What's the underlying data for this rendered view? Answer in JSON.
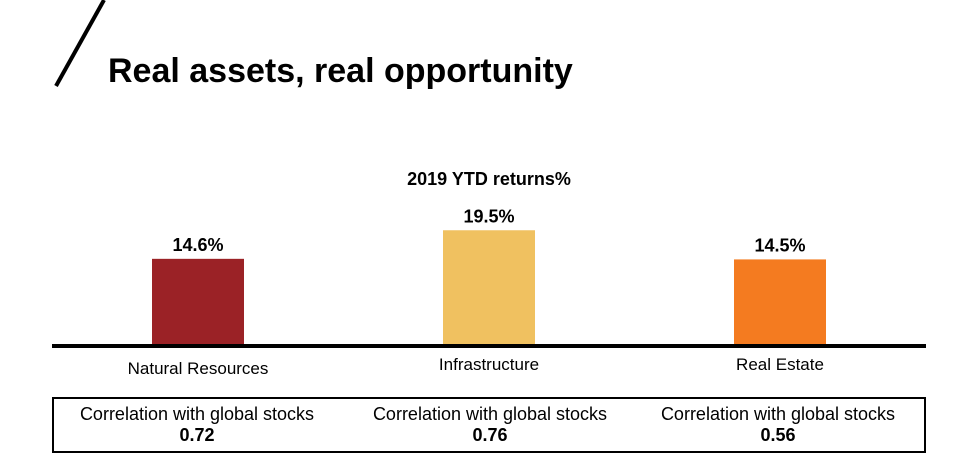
{
  "slide": {
    "title": "Real assets, real opportunity"
  },
  "chart_data": {
    "type": "bar",
    "title": "2019 YTD returns%",
    "categories": [
      "Natural Resources",
      "Infrastructure",
      "Real Estate"
    ],
    "values": [
      14.6,
      19.5,
      14.5
    ],
    "data_labels": [
      "14.6%",
      "19.5%",
      "14.5%"
    ],
    "colors": [
      "#9b2226",
      "#f0c160",
      "#f47b20"
    ],
    "xlabel": "",
    "ylabel": "",
    "ylim": [
      0,
      24
    ],
    "grid": false,
    "legend": "none"
  },
  "correlation": {
    "items": [
      {
        "label": "Correlation with global stocks",
        "value": "0.72"
      },
      {
        "label": "Correlation with global stocks",
        "value": "0.76"
      },
      {
        "label": "Correlation with global stocks",
        "value": "0.56"
      }
    ]
  }
}
